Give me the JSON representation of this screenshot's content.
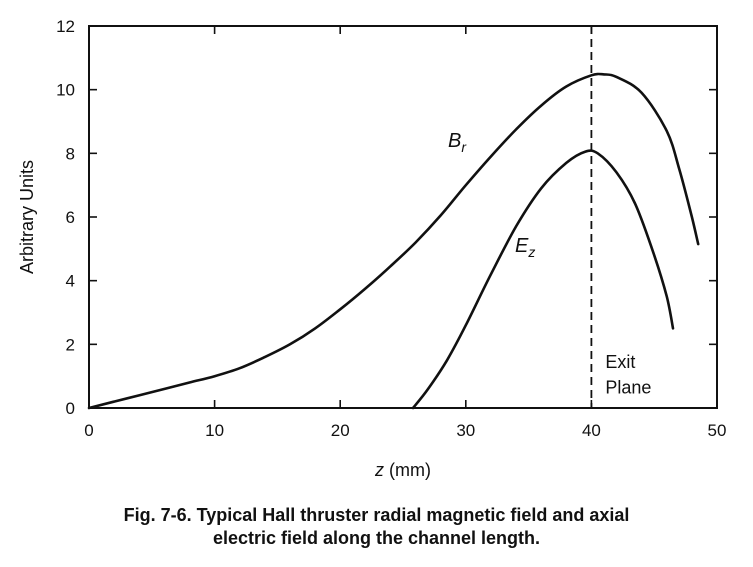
{
  "chart_data": {
    "type": "line",
    "xlabel_var": "z",
    "xlabel_unit": "(mm)",
    "ylabel": "Arbitrary Units",
    "xlim": [
      0,
      50
    ],
    "ylim": [
      0,
      12
    ],
    "xticks": [
      0,
      10,
      20,
      30,
      40,
      50
    ],
    "yticks": [
      0,
      2,
      4,
      6,
      8,
      10,
      12
    ],
    "grid": false,
    "series": [
      {
        "name_main": "B",
        "name_sub": "r",
        "points": [
          [
            0,
            0
          ],
          [
            2,
            0.2
          ],
          [
            5,
            0.5
          ],
          [
            8,
            0.8
          ],
          [
            10,
            1.0
          ],
          [
            12,
            1.25
          ],
          [
            14,
            1.6
          ],
          [
            16,
            2.0
          ],
          [
            18,
            2.5
          ],
          [
            20,
            3.1
          ],
          [
            22,
            3.75
          ],
          [
            24,
            4.45
          ],
          [
            26,
            5.2
          ],
          [
            28,
            6.05
          ],
          [
            30,
            7.0
          ],
          [
            32,
            7.9
          ],
          [
            34,
            8.75
          ],
          [
            36,
            9.5
          ],
          [
            38,
            10.1
          ],
          [
            40,
            10.45
          ],
          [
            41,
            10.48
          ],
          [
            42,
            10.4
          ],
          [
            44,
            9.9
          ],
          [
            46,
            8.7
          ],
          [
            47,
            7.5
          ],
          [
            48,
            6.0
          ],
          [
            48.5,
            5.15
          ]
        ]
      },
      {
        "name_main": "E",
        "name_sub": "z",
        "points": [
          [
            25.8,
            0
          ],
          [
            27,
            0.6
          ],
          [
            28.5,
            1.5
          ],
          [
            30,
            2.6
          ],
          [
            32,
            4.2
          ],
          [
            34,
            5.7
          ],
          [
            36,
            6.9
          ],
          [
            38,
            7.7
          ],
          [
            39.5,
            8.05
          ],
          [
            40.5,
            8.0
          ],
          [
            42,
            7.4
          ],
          [
            43.5,
            6.4
          ],
          [
            45,
            4.8
          ],
          [
            46,
            3.5
          ],
          [
            46.5,
            2.5
          ]
        ]
      }
    ],
    "annotations": {
      "exit_plane_x": 40,
      "exit_line1": "Exit",
      "exit_line2": "Plane"
    }
  },
  "caption_line1": "Fig. 7-6. Typical Hall thruster radial magnetic field and axial",
  "caption_line2": "electric field along the channel length."
}
